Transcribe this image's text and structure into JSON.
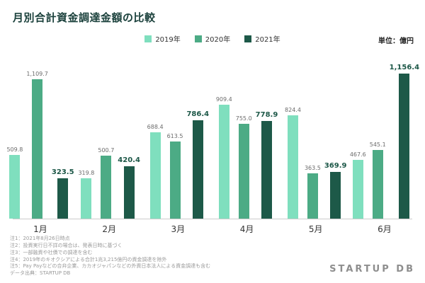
{
  "header": {
    "title": "月別合計資金調達金額の比較",
    "unit_label": "単位：億円"
  },
  "chart_data": {
    "type": "bar",
    "title": "月別合計資金調達金額の比較",
    "categories": [
      "1月",
      "2月",
      "3月",
      "4月",
      "5月",
      "6月"
    ],
    "series": [
      {
        "name": "2019年",
        "color": "#7fdfbe",
        "values": [
          509.8,
          319.8,
          688.4,
          909.4,
          824.4,
          467.6
        ],
        "labels": [
          "509.8",
          "319.8",
          "688.4",
          "909.4",
          "824.4",
          "467.6"
        ],
        "emphasis": false
      },
      {
        "name": "2020年",
        "color": "#4cab85",
        "values": [
          1109.7,
          500.7,
          613.5,
          755.0,
          363.5,
          545.1
        ],
        "labels": [
          "1,109.7",
          "500.7",
          "613.5",
          "755.0",
          "363.5",
          "545.1"
        ],
        "emphasis": false
      },
      {
        "name": "2021年",
        "color": "#1d5948",
        "values": [
          323.5,
          420.4,
          786.4,
          778.9,
          369.9,
          1156.4
        ],
        "labels": [
          "323.5",
          "420.4",
          "786.4",
          "778.9",
          "369.9",
          "1,156.4"
        ],
        "emphasis": true
      }
    ],
    "ylim": [
      0,
      1156.4
    ],
    "xlabel": "",
    "ylabel": "億円",
    "legend_position": "top-center",
    "grid": false
  },
  "footnotes": [
    "注1：2021年8月26日時点",
    "注2：投資実行日不詳の場合は、発表日時に基づく",
    "注3：一部融資や社債での調達を含む",
    "注4：2019年のキオクシアによる合計1兆3,215億円の資金調達を除外",
    "注5：Pay Payなどの合弁企業、カカオジャパンなどの外資日本法人による資金調達も含む",
    "データ出典：STARTUP DB"
  ],
  "logo": "STARTUP DB"
}
